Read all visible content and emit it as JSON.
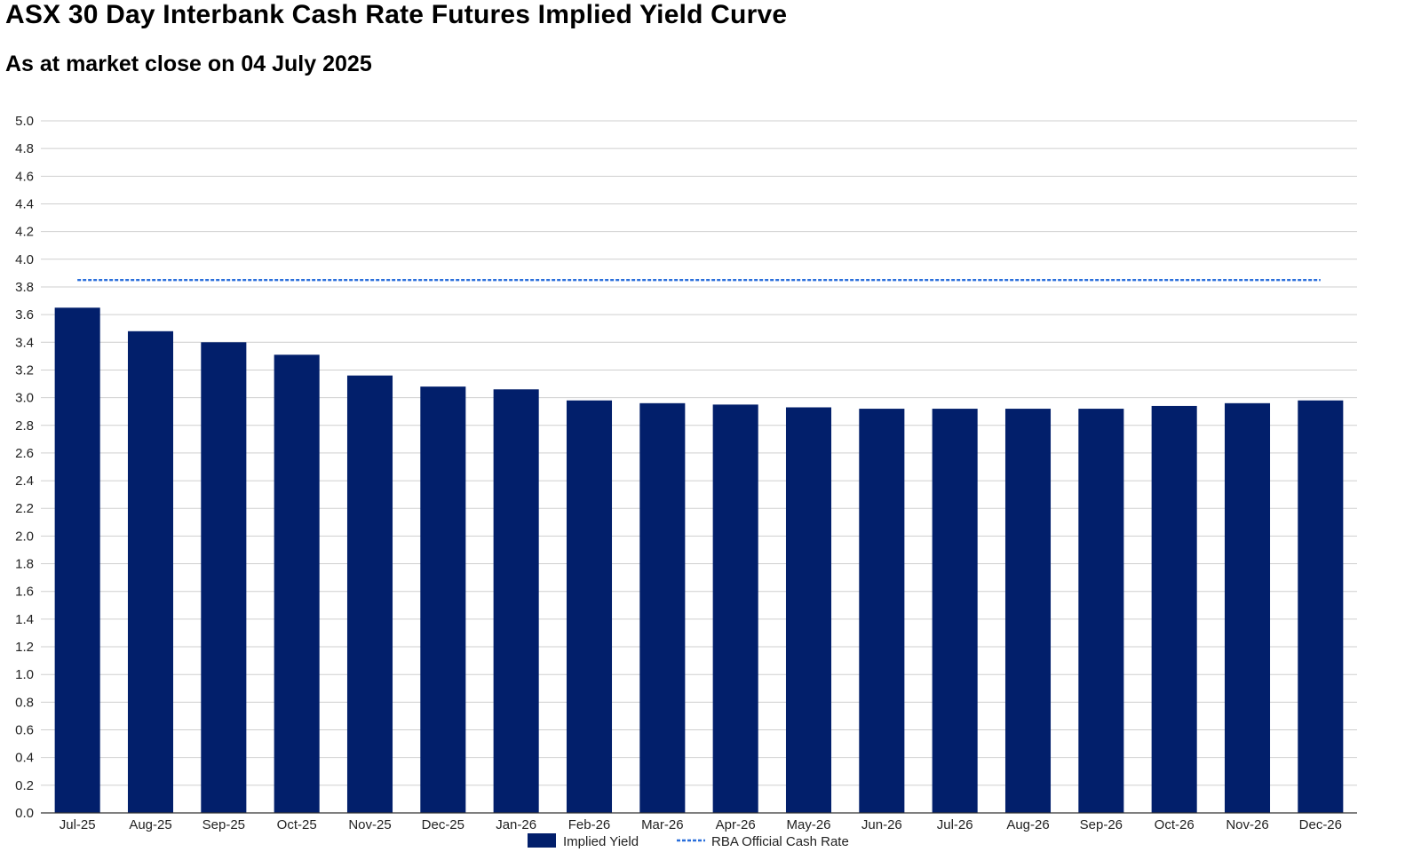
{
  "chart_data": {
    "type": "bar",
    "title": "ASX 30 Day Interbank Cash Rate Futures Implied Yield Curve",
    "subtitle": "As at market close on 04 July 2025",
    "xlabel": "",
    "ylabel": "",
    "ylim": [
      0,
      5.0
    ],
    "y_ticks": [
      "0.0",
      "0.2",
      "0.4",
      "0.6",
      "0.8",
      "1.0",
      "1.2",
      "1.4",
      "1.6",
      "1.8",
      "2.0",
      "2.2",
      "2.4",
      "2.6",
      "2.8",
      "3.0",
      "3.2",
      "3.4",
      "3.6",
      "3.8",
      "4.0",
      "4.2",
      "4.4",
      "4.6",
      "4.8",
      "5.0"
    ],
    "grid": "horizontal",
    "legend_position": "bottom",
    "categories": [
      "Jul-25",
      "Aug-25",
      "Sep-25",
      "Oct-25",
      "Nov-25",
      "Dec-25",
      "Jan-26",
      "Feb-26",
      "Mar-26",
      "Apr-26",
      "May-26",
      "Jun-26",
      "Jul-26",
      "Aug-26",
      "Sep-26",
      "Oct-26",
      "Nov-26",
      "Dec-26"
    ],
    "series": [
      {
        "name": "Implied Yield",
        "type": "bar",
        "color": "#021f6b",
        "values": [
          3.65,
          3.48,
          3.4,
          3.31,
          3.16,
          3.08,
          3.06,
          2.98,
          2.96,
          2.95,
          2.93,
          2.92,
          2.92,
          2.92,
          2.92,
          2.94,
          2.96,
          2.98
        ]
      },
      {
        "name": "RBA Official Cash Rate",
        "type": "line",
        "style": "dashed",
        "color": "#2a6fdb",
        "values": [
          3.85,
          3.85,
          3.85,
          3.85,
          3.85,
          3.85,
          3.85,
          3.85,
          3.85,
          3.85,
          3.85,
          3.85,
          3.85,
          3.85,
          3.85,
          3.85,
          3.85,
          3.85
        ]
      }
    ]
  }
}
